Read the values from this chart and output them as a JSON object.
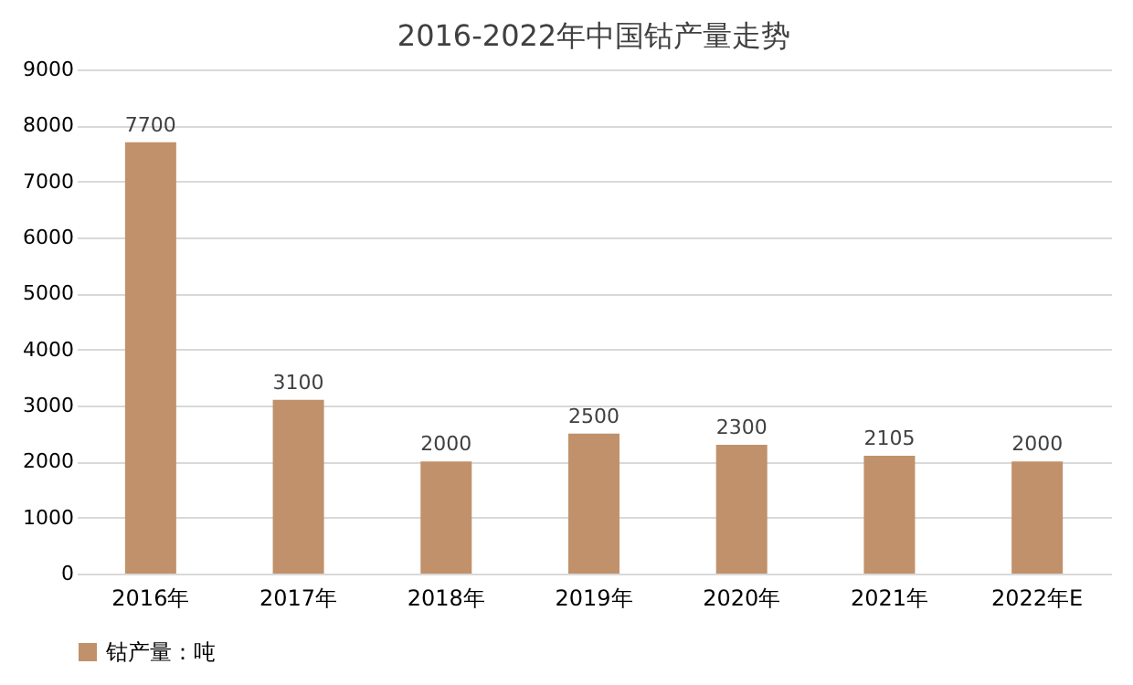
{
  "chart_data": {
    "type": "bar",
    "title": "2016-2022年中国钴产量走势",
    "categories": [
      "2016年",
      "2017年",
      "2018年",
      "2019年",
      "2020年",
      "2021年",
      "2022年E"
    ],
    "series": [
      {
        "name": "钴产量：吨",
        "color": "#c0916b",
        "values": [
          7700,
          3100,
          2000,
          2500,
          2300,
          2105,
          2000
        ]
      }
    ],
    "ylim": [
      0,
      9000
    ],
    "yticks": [
      0,
      1000,
      2000,
      3000,
      4000,
      5000,
      6000,
      7000,
      8000,
      9000
    ],
    "grid": "y",
    "legend": "bottom",
    "data_labels": true
  }
}
